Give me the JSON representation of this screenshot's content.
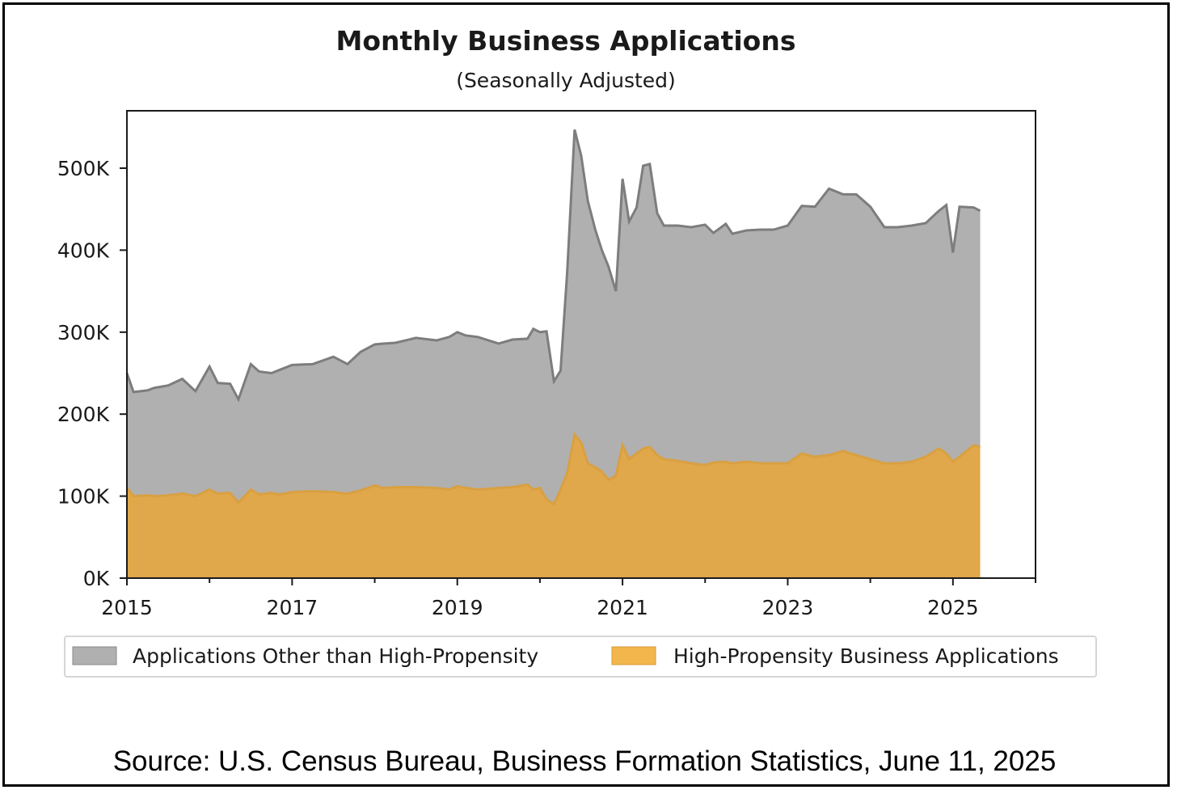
{
  "chart_data": {
    "type": "area",
    "stacked": true,
    "title": "Monthly Business Applications",
    "subtitle": "(Seasonally Adjusted)",
    "xlim": [
      2015,
      2026
    ],
    "ylim": [
      0,
      570000
    ],
    "x_ticks": [
      2015,
      2017,
      2019,
      2021,
      2023,
      2025
    ],
    "x_tick_labels": [
      "2015",
      "2017",
      "2019",
      "2021",
      "2023",
      "2025"
    ],
    "y_ticks": [
      0,
      100000,
      200000,
      300000,
      400000,
      500000
    ],
    "y_tick_labels": [
      "0K",
      "100K",
      "200K",
      "300K",
      "400K",
      "500K"
    ],
    "legend_position": "bottom",
    "x": [
      2015.0,
      2015.08,
      2015.25,
      2015.33,
      2015.5,
      2015.67,
      2015.83,
      2016.0,
      2016.1,
      2016.25,
      2016.35,
      2016.5,
      2016.6,
      2016.75,
      2016.85,
      2017.0,
      2017.25,
      2017.5,
      2017.67,
      2017.83,
      2018.0,
      2018.1,
      2018.25,
      2018.5,
      2018.75,
      2018.9,
      2019.0,
      2019.1,
      2019.25,
      2019.5,
      2019.67,
      2019.85,
      2019.92,
      2020.0,
      2020.08,
      2020.17,
      2020.25,
      2020.33,
      2020.42,
      2020.5,
      2020.58,
      2020.67,
      2020.75,
      2020.83,
      2020.92,
      2021.0,
      2021.08,
      2021.17,
      2021.25,
      2021.33,
      2021.42,
      2021.5,
      2021.67,
      2021.83,
      2022.0,
      2022.1,
      2022.25,
      2022.33,
      2022.5,
      2022.67,
      2022.83,
      2023.0,
      2023.17,
      2023.33,
      2023.5,
      2023.67,
      2023.83,
      2024.0,
      2024.17,
      2024.33,
      2024.5,
      2024.67,
      2024.83,
      2024.92,
      2025.0,
      2025.08,
      2025.25,
      2025.33
    ],
    "series": [
      {
        "name": "High-Propensity Business Applications",
        "color": "#e0a84a",
        "values": [
          110000,
          100000,
          101000,
          100000,
          101000,
          103000,
          100000,
          108000,
          103000,
          104000,
          92000,
          108000,
          102000,
          104000,
          102000,
          105000,
          106000,
          105000,
          103000,
          107000,
          113000,
          110000,
          111000,
          111000,
          110000,
          108000,
          112000,
          110000,
          108000,
          110000,
          111000,
          114000,
          108000,
          110000,
          96000,
          90000,
          108000,
          128000,
          175000,
          165000,
          140000,
          135000,
          130000,
          120000,
          125000,
          162000,
          145000,
          152000,
          158000,
          160000,
          150000,
          145000,
          143000,
          140000,
          138000,
          141000,
          142000,
          140000,
          142000,
          140000,
          140000,
          140000,
          152000,
          148000,
          150000,
          155000,
          150000,
          145000,
          140000,
          140000,
          142000,
          148000,
          158000,
          152000,
          142000,
          148000,
          162000,
          160000
        ]
      },
      {
        "name": "Applications Other than High-Propensity",
        "color": "#b0b0b0",
        "values": [
          140000,
          127000,
          128000,
          132000,
          134000,
          140000,
          128000,
          150000,
          135000,
          133000,
          126000,
          153000,
          150000,
          146000,
          152000,
          155000,
          155000,
          165000,
          158000,
          169000,
          172000,
          176000,
          176000,
          182000,
          180000,
          186000,
          188000,
          186000,
          186000,
          176000,
          180000,
          178000,
          196000,
          190000,
          205000,
          150000,
          145000,
          245000,
          372000,
          350000,
          320000,
          290000,
          270000,
          260000,
          225000,
          325000,
          290000,
          300000,
          345000,
          345000,
          295000,
          285000,
          287000,
          288000,
          293000,
          280000,
          290000,
          280000,
          282000,
          285000,
          285000,
          290000,
          302000,
          305000,
          325000,
          313000,
          318000,
          308000,
          288000,
          288000,
          288000,
          285000,
          290000,
          303000,
          255000,
          305000,
          290000,
          288000
        ]
      }
    ]
  },
  "source": "Source: U.S. Census Bureau, Business Formation Statistics, June 11, 2025"
}
